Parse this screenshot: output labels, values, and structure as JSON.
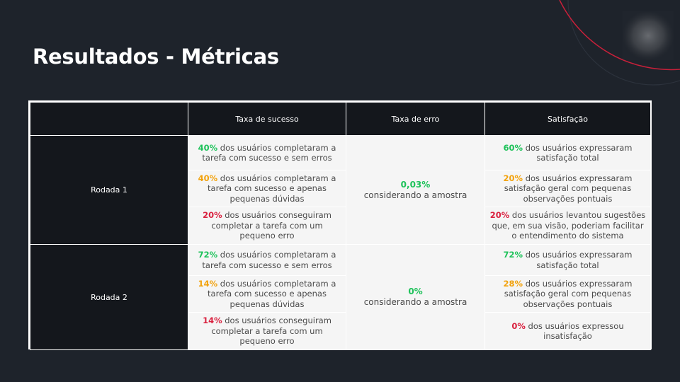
{
  "slide": {
    "title": "Resultados - Métricas"
  },
  "colors": {
    "background": "#1e232b",
    "header_bg": "#14171c",
    "cell_bg": "#f5f5f5",
    "success": "#1ec25a",
    "warning": "#f2a20c",
    "error": "#d9213f",
    "decor_arc": "#c8203a"
  },
  "table": {
    "headers": [
      "",
      "Taxa de sucesso",
      "Taxa de erro",
      "Satisfação"
    ],
    "rounds": [
      {
        "label": "Rodada 1",
        "error_rate": {
          "value": "0,03%",
          "note": "considerando a amostra"
        },
        "rows": [
          {
            "success": {
              "pct": "40%",
              "text": " dos usuários completaram a tarefa com sucesso e sem erros",
              "level": "green"
            },
            "satisfaction": {
              "pct": "60%",
              "text": " dos usuários expressaram satisfação total",
              "level": "green"
            }
          },
          {
            "success": {
              "pct": "40%",
              "text": " dos usuários completaram a tarefa com sucesso e apenas pequenas dúvidas",
              "level": "orange"
            },
            "satisfaction": {
              "pct": "20%",
              "text": " dos usuários expressaram satisfação geral com pequenas observações pontuais",
              "level": "orange"
            }
          },
          {
            "success": {
              "pct": "20%",
              "text": " dos usuários conseguiram completar a tarefa com um pequeno erro",
              "level": "red"
            },
            "satisfaction": {
              "pct": "20%",
              "text": " dos usuários levantou sugestões que, em sua visão, poderiam facilitar o entendimento do sistema",
              "level": "red"
            }
          }
        ]
      },
      {
        "label": "Rodada 2",
        "error_rate": {
          "value": "0%",
          "note": "considerando a amostra"
        },
        "rows": [
          {
            "success": {
              "pct": "72%",
              "text": " dos usuários completaram a tarefa com sucesso e sem erros",
              "level": "green"
            },
            "satisfaction": {
              "pct": "72%",
              "text": " dos usuários expressaram satisfação total",
              "level": "green"
            }
          },
          {
            "success": {
              "pct": "14%",
              "text": " dos usuários completaram a tarefa com sucesso e apenas pequenas dúvidas",
              "level": "orange"
            },
            "satisfaction": {
              "pct": "28%",
              "text": " dos usuários expressaram satisfação geral com pequenas observações pontuais",
              "level": "orange"
            }
          },
          {
            "success": {
              "pct": "14%",
              "text": " dos usuários conseguiram completar a tarefa com um pequeno erro",
              "level": "red"
            },
            "satisfaction": {
              "pct": "0%",
              "text": " dos usuários expressou insatisfação",
              "level": "red"
            }
          }
        ]
      }
    ]
  }
}
